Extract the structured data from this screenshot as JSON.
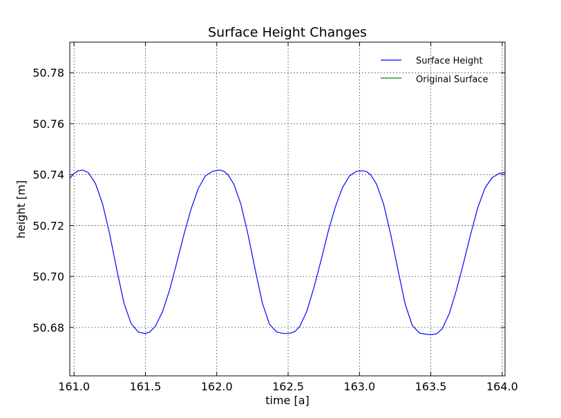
{
  "chart_data": {
    "type": "line",
    "title": "Surface Height Changes",
    "xlabel": "time [a]",
    "ylabel": "height [m]",
    "xlim": [
      160.97,
      164.02
    ],
    "ylim": [
      50.661,
      50.792
    ],
    "xticks": [
      "161.0",
      "161.5",
      "162.0",
      "162.5",
      "163.0",
      "163.5",
      "164.0"
    ],
    "yticks": [
      "50.68",
      "50.70",
      "50.72",
      "50.74",
      "50.76",
      "50.78"
    ],
    "grid": true,
    "legend_position": "top-right",
    "colors": {
      "surface_height": "#0000ff",
      "original_surface": "#008000"
    },
    "series": [
      {
        "name": "Surface Height",
        "color": "#0000ff",
        "x": [
          160.97,
          161.0,
          161.03,
          161.06,
          161.1,
          161.15,
          161.2,
          161.25,
          161.3,
          161.35,
          161.4,
          161.45,
          161.5,
          161.53,
          161.57,
          161.62,
          161.67,
          161.72,
          161.77,
          161.82,
          161.87,
          161.92,
          161.97,
          162.02,
          162.05,
          162.08,
          162.12,
          162.17,
          162.22,
          162.27,
          162.32,
          162.37,
          162.42,
          162.47,
          162.52,
          162.55,
          162.58,
          162.63,
          162.68,
          162.73,
          162.78,
          162.83,
          162.88,
          162.93,
          162.98,
          163.02,
          163.05,
          163.08,
          163.12,
          163.17,
          163.22,
          163.27,
          163.32,
          163.37,
          163.42,
          163.47,
          163.51,
          163.54,
          163.58,
          163.63,
          163.68,
          163.73,
          163.78,
          163.83,
          163.88,
          163.93,
          163.98,
          164.02
        ],
        "y": [
          50.7385,
          50.7405,
          50.7415,
          50.7418,
          50.7408,
          50.7365,
          50.7285,
          50.7165,
          50.7025,
          50.6895,
          50.6815,
          50.6782,
          50.6776,
          50.6782,
          50.6805,
          50.6862,
          50.6948,
          50.7055,
          50.7165,
          50.7265,
          50.7345,
          50.7395,
          50.7413,
          50.7418,
          50.7413,
          50.7398,
          50.7362,
          50.7282,
          50.7162,
          50.7025,
          50.6895,
          50.6812,
          50.6782,
          50.6776,
          50.6778,
          50.6785,
          50.6803,
          50.6862,
          50.6955,
          50.7062,
          50.7175,
          50.7272,
          50.7348,
          50.7395,
          50.7413,
          50.7415,
          50.7412,
          50.7398,
          50.7362,
          50.7282,
          50.7162,
          50.7025,
          50.6892,
          50.6808,
          50.6778,
          50.6773,
          50.6772,
          50.6775,
          50.6795,
          50.6855,
          50.6948,
          50.7055,
          50.7168,
          50.7272,
          50.7348,
          50.7388,
          50.7405,
          50.7408
        ]
      },
      {
        "name": "Original Surface",
        "color": "#008000",
        "x": [],
        "y": []
      }
    ]
  }
}
